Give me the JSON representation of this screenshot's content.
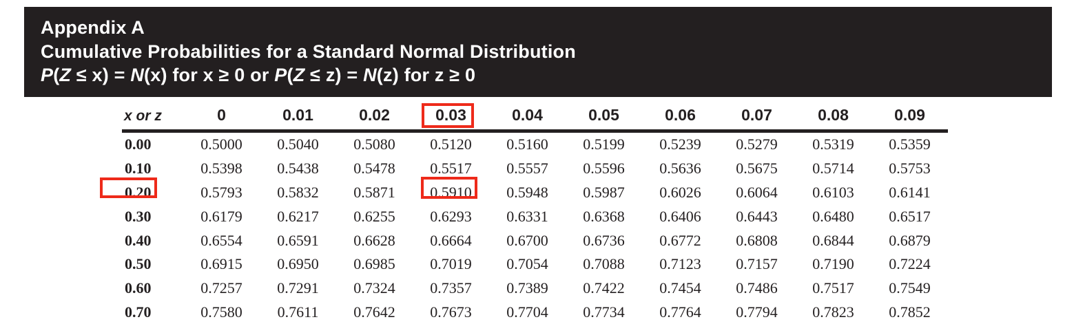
{
  "banner": {
    "title": "Appendix A",
    "subtitle": "Cumulative Probabilities for a Standard Normal Distribution",
    "formula_parts": [
      {
        "t": "P",
        "i": 1
      },
      {
        "t": "(",
        "i": 0
      },
      {
        "t": "Z",
        "i": 1
      },
      {
        "t": " ≤ x) = ",
        "i": 0
      },
      {
        "t": "N",
        "i": 1
      },
      {
        "t": "(x) for x ≥ 0 or ",
        "i": 0
      },
      {
        "t": "P",
        "i": 1
      },
      {
        "t": "(",
        "i": 0
      },
      {
        "t": "Z",
        "i": 1
      },
      {
        "t": " ≤ z) = ",
        "i": 0
      },
      {
        "t": "N",
        "i": 1
      },
      {
        "t": "(z) for z ≥ 0",
        "i": 0
      }
    ]
  },
  "table": {
    "corner_label": "x or z",
    "col_headers": [
      "0",
      "0.01",
      "0.02",
      "0.03",
      "0.04",
      "0.05",
      "0.06",
      "0.07",
      "0.08",
      "0.09"
    ],
    "rows": [
      {
        "label": "0.00",
        "values": [
          "0.5000",
          "0.5040",
          "0.5080",
          "0.5120",
          "0.5160",
          "0.5199",
          "0.5239",
          "0.5279",
          "0.5319",
          "0.5359"
        ]
      },
      {
        "label": "0.10",
        "values": [
          "0.5398",
          "0.5438",
          "0.5478",
          "0.5517",
          "0.5557",
          "0.5596",
          "0.5636",
          "0.5675",
          "0.5714",
          "0.5753"
        ]
      },
      {
        "label": "0.20",
        "values": [
          "0.5793",
          "0.5832",
          "0.5871",
          "0.5910",
          "0.5948",
          "0.5987",
          "0.6026",
          "0.6064",
          "0.6103",
          "0.6141"
        ]
      },
      {
        "label": "0.30",
        "values": [
          "0.6179",
          "0.6217",
          "0.6255",
          "0.6293",
          "0.6331",
          "0.6368",
          "0.6406",
          "0.6443",
          "0.6480",
          "0.6517"
        ]
      },
      {
        "label": "0.40",
        "values": [
          "0.6554",
          "0.6591",
          "0.6628",
          "0.6664",
          "0.6700",
          "0.6736",
          "0.6772",
          "0.6808",
          "0.6844",
          "0.6879"
        ]
      },
      {
        "label": "0.50",
        "values": [
          "0.6915",
          "0.6950",
          "0.6985",
          "0.7019",
          "0.7054",
          "0.7088",
          "0.7123",
          "0.7157",
          "0.7190",
          "0.7224"
        ]
      },
      {
        "label": "0.60",
        "values": [
          "0.7257",
          "0.7291",
          "0.7324",
          "0.7357",
          "0.7389",
          "0.7422",
          "0.7454",
          "0.7486",
          "0.7517",
          "0.7549"
        ]
      },
      {
        "label": "0.70",
        "values": [
          "0.7580",
          "0.7611",
          "0.7642",
          "0.7673",
          "0.7704",
          "0.7734",
          "0.7764",
          "0.7794",
          "0.7823",
          "0.7852"
        ]
      }
    ],
    "highlights": {
      "column_header": "0.03",
      "row_label": "0.20",
      "cell_value": "0.5910"
    }
  },
  "colors": {
    "banner_bg": "#231f20",
    "text": "#231f20",
    "highlight_red": "#ee2a1a"
  }
}
